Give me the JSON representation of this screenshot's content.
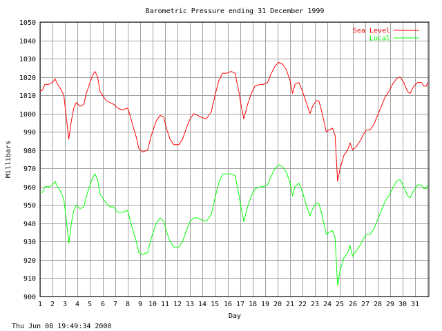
{
  "chart_data": {
    "type": "line",
    "title": "Barometric Pressure ending 31 December 1999",
    "xlabel": "Day",
    "ylabel": "Millibars",
    "footer": "Thu Jun 08 19:49:34 2000",
    "xlim": [
      1,
      32
    ],
    "ylim": [
      900,
      1050
    ],
    "x_ticks": [
      1,
      2,
      3,
      4,
      5,
      6,
      7,
      8,
      9,
      10,
      11,
      12,
      13,
      14,
      15,
      16,
      17,
      18,
      19,
      20,
      21,
      22,
      23,
      24,
      25,
      26,
      27,
      28,
      29,
      30,
      31
    ],
    "y_ticks": [
      900,
      910,
      920,
      930,
      940,
      950,
      960,
      970,
      980,
      990,
      1000,
      1010,
      1020,
      1030,
      1040,
      1050
    ],
    "grid": true,
    "legend_position": "top-right",
    "series": [
      {
        "name": "Sea Level",
        "color": "#ff0000",
        "points": [
          [
            1.0,
            1012
          ],
          [
            1.2,
            1013
          ],
          [
            1.4,
            1016
          ],
          [
            1.7,
            1016
          ],
          [
            2.0,
            1017
          ],
          [
            2.2,
            1019
          ],
          [
            2.4,
            1016
          ],
          [
            2.6,
            1014
          ],
          [
            2.9,
            1010
          ],
          [
            3.1,
            998
          ],
          [
            3.3,
            986
          ],
          [
            3.5,
            996
          ],
          [
            3.7,
            1003
          ],
          [
            3.9,
            1006
          ],
          [
            4.2,
            1004
          ],
          [
            4.5,
            1005
          ],
          [
            4.7,
            1011
          ],
          [
            5.0,
            1017
          ],
          [
            5.2,
            1021
          ],
          [
            5.4,
            1023
          ],
          [
            5.6,
            1020
          ],
          [
            5.8,
            1012
          ],
          [
            6.1,
            1009
          ],
          [
            6.3,
            1007
          ],
          [
            6.6,
            1006
          ],
          [
            6.9,
            1005
          ],
          [
            7.2,
            1003
          ],
          [
            7.6,
            1002
          ],
          [
            8.0,
            1003
          ],
          [
            8.2,
            999
          ],
          [
            8.4,
            994
          ],
          [
            8.7,
            987
          ],
          [
            8.9,
            981
          ],
          [
            9.2,
            979
          ],
          [
            9.6,
            980
          ],
          [
            9.9,
            988
          ],
          [
            10.3,
            996
          ],
          [
            10.6,
            999
          ],
          [
            10.9,
            998
          ],
          [
            11.1,
            992
          ],
          [
            11.4,
            986
          ],
          [
            11.7,
            983
          ],
          [
            12.1,
            983
          ],
          [
            12.4,
            986
          ],
          [
            12.7,
            992
          ],
          [
            13.0,
            997
          ],
          [
            13.3,
            1000
          ],
          [
            13.6,
            999
          ],
          [
            13.9,
            998
          ],
          [
            14.3,
            997
          ],
          [
            14.7,
            1001
          ],
          [
            15.0,
            1010
          ],
          [
            15.3,
            1018
          ],
          [
            15.6,
            1022
          ],
          [
            15.9,
            1022
          ],
          [
            16.3,
            1023
          ],
          [
            16.6,
            1022
          ],
          [
            16.9,
            1012
          ],
          [
            17.1,
            1004
          ],
          [
            17.3,
            997
          ],
          [
            17.6,
            1005
          ],
          [
            17.9,
            1011
          ],
          [
            18.2,
            1015
          ],
          [
            18.6,
            1016
          ],
          [
            18.9,
            1016
          ],
          [
            19.2,
            1017
          ],
          [
            19.5,
            1022
          ],
          [
            19.8,
            1026
          ],
          [
            20.1,
            1028
          ],
          [
            20.4,
            1027
          ],
          [
            20.7,
            1024
          ],
          [
            21.0,
            1018
          ],
          [
            21.2,
            1011
          ],
          [
            21.4,
            1016
          ],
          [
            21.7,
            1017
          ],
          [
            22.0,
            1012
          ],
          [
            22.3,
            1006
          ],
          [
            22.6,
            1000
          ],
          [
            22.8,
            1004
          ],
          [
            23.1,
            1007
          ],
          [
            23.3,
            1007
          ],
          [
            23.5,
            1002
          ],
          [
            23.7,
            996
          ],
          [
            23.9,
            990
          ],
          [
            24.1,
            991
          ],
          [
            24.4,
            992
          ],
          [
            24.6,
            988
          ],
          [
            24.8,
            963
          ],
          [
            25.0,
            970
          ],
          [
            25.3,
            977
          ],
          [
            25.6,
            980
          ],
          [
            25.8,
            984
          ],
          [
            26.0,
            980
          ],
          [
            26.3,
            982
          ],
          [
            26.6,
            985
          ],
          [
            26.9,
            989
          ],
          [
            27.1,
            991
          ],
          [
            27.4,
            991
          ],
          [
            27.7,
            994
          ],
          [
            28.0,
            999
          ],
          [
            28.3,
            1004
          ],
          [
            28.6,
            1009
          ],
          [
            28.9,
            1012
          ],
          [
            29.2,
            1016
          ],
          [
            29.5,
            1019
          ],
          [
            29.8,
            1020
          ],
          [
            30.1,
            1017
          ],
          [
            30.4,
            1012
          ],
          [
            30.6,
            1011
          ],
          [
            30.9,
            1015
          ],
          [
            31.2,
            1017
          ],
          [
            31.5,
            1017
          ],
          [
            31.7,
            1015
          ],
          [
            31.9,
            1015
          ],
          [
            32.0,
            1017
          ]
        ]
      },
      {
        "name": "Local",
        "color": "#00ff00",
        "points": [
          [
            1.0,
            957
          ],
          [
            1.2,
            957
          ],
          [
            1.4,
            960
          ],
          [
            1.7,
            960
          ],
          [
            2.0,
            961
          ],
          [
            2.2,
            963
          ],
          [
            2.4,
            960
          ],
          [
            2.6,
            958
          ],
          [
            2.9,
            953
          ],
          [
            3.1,
            942
          ],
          [
            3.3,
            929
          ],
          [
            3.5,
            940
          ],
          [
            3.7,
            947
          ],
          [
            3.9,
            950
          ],
          [
            4.2,
            948
          ],
          [
            4.5,
            949
          ],
          [
            4.7,
            955
          ],
          [
            5.0,
            961
          ],
          [
            5.2,
            965
          ],
          [
            5.4,
            967
          ],
          [
            5.6,
            964
          ],
          [
            5.8,
            956
          ],
          [
            6.1,
            953
          ],
          [
            6.3,
            951
          ],
          [
            6.6,
            949
          ],
          [
            6.9,
            949
          ],
          [
            7.2,
            946
          ],
          [
            7.6,
            946
          ],
          [
            8.0,
            947
          ],
          [
            8.2,
            942
          ],
          [
            8.4,
            937
          ],
          [
            8.7,
            930
          ],
          [
            8.9,
            924
          ],
          [
            9.2,
            923
          ],
          [
            9.6,
            924
          ],
          [
            9.9,
            932
          ],
          [
            10.3,
            940
          ],
          [
            10.6,
            943
          ],
          [
            10.9,
            941
          ],
          [
            11.1,
            936
          ],
          [
            11.4,
            930
          ],
          [
            11.7,
            927
          ],
          [
            12.1,
            927
          ],
          [
            12.4,
            930
          ],
          [
            12.7,
            936
          ],
          [
            13.0,
            941
          ],
          [
            13.3,
            943
          ],
          [
            13.6,
            943
          ],
          [
            13.9,
            942
          ],
          [
            14.3,
            941
          ],
          [
            14.7,
            945
          ],
          [
            15.0,
            954
          ],
          [
            15.3,
            962
          ],
          [
            15.6,
            967
          ],
          [
            15.9,
            967
          ],
          [
            16.3,
            967
          ],
          [
            16.6,
            966
          ],
          [
            16.9,
            956
          ],
          [
            17.1,
            948
          ],
          [
            17.3,
            941
          ],
          [
            17.6,
            949
          ],
          [
            17.9,
            955
          ],
          [
            18.2,
            959
          ],
          [
            18.6,
            960
          ],
          [
            18.9,
            960
          ],
          [
            19.2,
            961
          ],
          [
            19.5,
            966
          ],
          [
            19.8,
            970
          ],
          [
            20.1,
            972
          ],
          [
            20.4,
            971
          ],
          [
            20.7,
            968
          ],
          [
            21.0,
            962
          ],
          [
            21.2,
            955
          ],
          [
            21.4,
            960
          ],
          [
            21.7,
            962
          ],
          [
            22.0,
            957
          ],
          [
            22.3,
            950
          ],
          [
            22.6,
            944
          ],
          [
            22.8,
            948
          ],
          [
            23.1,
            951
          ],
          [
            23.3,
            951
          ],
          [
            23.5,
            946
          ],
          [
            23.7,
            940
          ],
          [
            23.9,
            934
          ],
          [
            24.1,
            935
          ],
          [
            24.4,
            936
          ],
          [
            24.6,
            932
          ],
          [
            24.8,
            906
          ],
          [
            25.0,
            914
          ],
          [
            25.3,
            921
          ],
          [
            25.6,
            924
          ],
          [
            25.8,
            928
          ],
          [
            26.0,
            922
          ],
          [
            26.3,
            925
          ],
          [
            26.6,
            928
          ],
          [
            26.9,
            932
          ],
          [
            27.1,
            934
          ],
          [
            27.4,
            934
          ],
          [
            27.7,
            937
          ],
          [
            28.0,
            942
          ],
          [
            28.3,
            947
          ],
          [
            28.6,
            952
          ],
          [
            28.9,
            955
          ],
          [
            29.2,
            959
          ],
          [
            29.5,
            963
          ],
          [
            29.8,
            964
          ],
          [
            30.1,
            960
          ],
          [
            30.4,
            955
          ],
          [
            30.6,
            954
          ],
          [
            30.9,
            958
          ],
          [
            31.2,
            961
          ],
          [
            31.5,
            961
          ],
          [
            31.7,
            959
          ],
          [
            31.9,
            959
          ],
          [
            32.0,
            961
          ]
        ]
      }
    ]
  }
}
